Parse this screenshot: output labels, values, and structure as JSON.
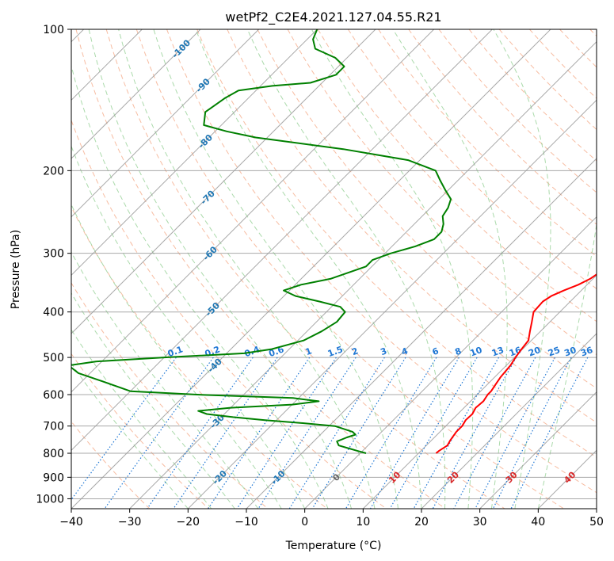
{
  "chart_data": {
    "type": "line",
    "title": "wetPf2_C2E4.2021.127.04.55.R21",
    "xlabel": "Temperature (°C)",
    "ylabel": "Pressure (hPa)",
    "xlim": [
      -40,
      50
    ],
    "ylim_hpa": [
      1050,
      100
    ],
    "y_scale": "log",
    "skew": "skew-T log-p",
    "x_ticks": [
      -40,
      -30,
      -20,
      -10,
      0,
      10,
      20,
      30,
      40,
      50
    ],
    "y_ticks": [
      100,
      200,
      300,
      400,
      500,
      600,
      700,
      800,
      900,
      1000
    ],
    "grid": true,
    "colors": {
      "temperature": "#ff0000",
      "dewpoint": "#008000",
      "dry_adiabat": "#f4a582",
      "moist_adiabat": "#8fce8f",
      "mixing_ratio": "#1f77d4",
      "isotherm": "#9a9a9a",
      "isotherm_label_cold": "#1f77b4",
      "isotherm_label_warm": "#d62728"
    },
    "series": [
      {
        "key": "temperature",
        "points": [
          [
            800,
            13.0
          ],
          [
            790,
            13.1
          ],
          [
            770,
            13.6
          ],
          [
            750,
            13.2
          ],
          [
            720,
            12.8
          ],
          [
            700,
            12.8
          ],
          [
            680,
            12.4
          ],
          [
            660,
            12.5
          ],
          [
            640,
            12.0
          ],
          [
            620,
            12.2
          ],
          [
            600,
            11.8
          ],
          [
            590,
            11.8
          ],
          [
            570,
            11.4
          ],
          [
            550,
            11.0
          ],
          [
            520,
            10.7
          ],
          [
            500,
            10.2
          ],
          [
            480,
            9.8
          ],
          [
            460,
            9.5
          ],
          [
            440,
            8.2
          ],
          [
            420,
            6.9
          ],
          [
            400,
            5.5
          ],
          [
            380,
            5.3
          ],
          [
            370,
            5.8
          ],
          [
            360,
            7.0
          ],
          [
            350,
            8.5
          ],
          [
            340,
            9.5
          ],
          [
            330,
            10.0
          ],
          [
            320,
            9.7
          ],
          [
            300,
            8.3
          ],
          [
            280,
            6.5
          ],
          [
            260,
            4.6
          ],
          [
            240,
            2.3
          ],
          [
            220,
            -0.2
          ],
          [
            200,
            -3.3
          ],
          [
            190,
            -4.7
          ],
          [
            180,
            -5.3
          ],
          [
            170,
            -5.2
          ],
          [
            160,
            -5.2
          ],
          [
            150,
            -5.6
          ],
          [
            140,
            -6.7
          ],
          [
            130,
            -8.4
          ],
          [
            120,
            -10.3
          ],
          [
            115,
            -10.5
          ],
          [
            110,
            -10.0
          ],
          [
            105,
            -10.2
          ],
          [
            100,
            -11.7
          ]
        ]
      },
      {
        "key": "dewpoint",
        "points": [
          [
            800,
            1.0
          ],
          [
            790,
            -1.0
          ],
          [
            780,
            -3.0
          ],
          [
            770,
            -5.0
          ],
          [
            755,
            -6.0
          ],
          [
            740,
            -5.0
          ],
          [
            730,
            -4.0
          ],
          [
            720,
            -5.0
          ],
          [
            700,
            -9.0
          ],
          [
            690,
            -15.0
          ],
          [
            680,
            -22.0
          ],
          [
            670,
            -28.0
          ],
          [
            660,
            -33.0
          ],
          [
            650,
            -35.0
          ],
          [
            640,
            -30.0
          ],
          [
            630,
            -20.0
          ],
          [
            620,
            -16.0
          ],
          [
            610,
            -21.0
          ],
          [
            600,
            -38.0
          ],
          [
            590,
            -50.0
          ],
          [
            560,
            -57.0
          ],
          [
            540,
            -62.0
          ],
          [
            520,
            -65.0
          ],
          [
            510,
            -61.0
          ],
          [
            500,
            -50.0
          ],
          [
            490,
            -37.0
          ],
          [
            480,
            -33.0
          ],
          [
            460,
            -29.0
          ],
          [
            440,
            -27.5
          ],
          [
            420,
            -26.5
          ],
          [
            400,
            -26.8
          ],
          [
            390,
            -28.5
          ],
          [
            380,
            -33.0
          ],
          [
            370,
            -38.0
          ],
          [
            360,
            -41.0
          ],
          [
            350,
            -39.0
          ],
          [
            340,
            -35.0
          ],
          [
            320,
            -31.0
          ],
          [
            310,
            -31.0
          ],
          [
            300,
            -29.0
          ],
          [
            290,
            -26.0
          ],
          [
            280,
            -24.0
          ],
          [
            270,
            -24.0
          ],
          [
            260,
            -25.0
          ],
          [
            250,
            -26.5
          ],
          [
            240,
            -27.0
          ],
          [
            230,
            -28.0
          ],
          [
            220,
            -30.5
          ],
          [
            210,
            -33.0
          ],
          [
            200,
            -35.5
          ],
          [
            190,
            -42.0
          ],
          [
            180,
            -55.0
          ],
          [
            170,
            -72.0
          ],
          [
            165,
            -78.0
          ],
          [
            160,
            -83.0
          ],
          [
            150,
            -85.0
          ],
          [
            140,
            -84.0
          ],
          [
            135,
            -83.0
          ],
          [
            132,
            -78.0
          ],
          [
            130,
            -72.0
          ],
          [
            125,
            -69.0
          ],
          [
            120,
            -69.0
          ],
          [
            115,
            -72.0
          ],
          [
            110,
            -77.0
          ],
          [
            105,
            -79.0
          ],
          [
            100,
            -80.0
          ]
        ]
      }
    ],
    "isotherm_labels": [
      "-100",
      "-90",
      "-80",
      "-70",
      "-60",
      "-50",
      "-40",
      "-30",
      "-20",
      "-10",
      "0",
      "10",
      "20",
      "30",
      "40"
    ],
    "mixing_ratio_labels": [
      "0.1",
      "0.2",
      "0.4",
      "0.6",
      "1",
      "1.5",
      "2",
      "3",
      "4",
      "6",
      "8",
      "10",
      "13",
      "16",
      "20",
      "25",
      "30",
      "36"
    ]
  }
}
